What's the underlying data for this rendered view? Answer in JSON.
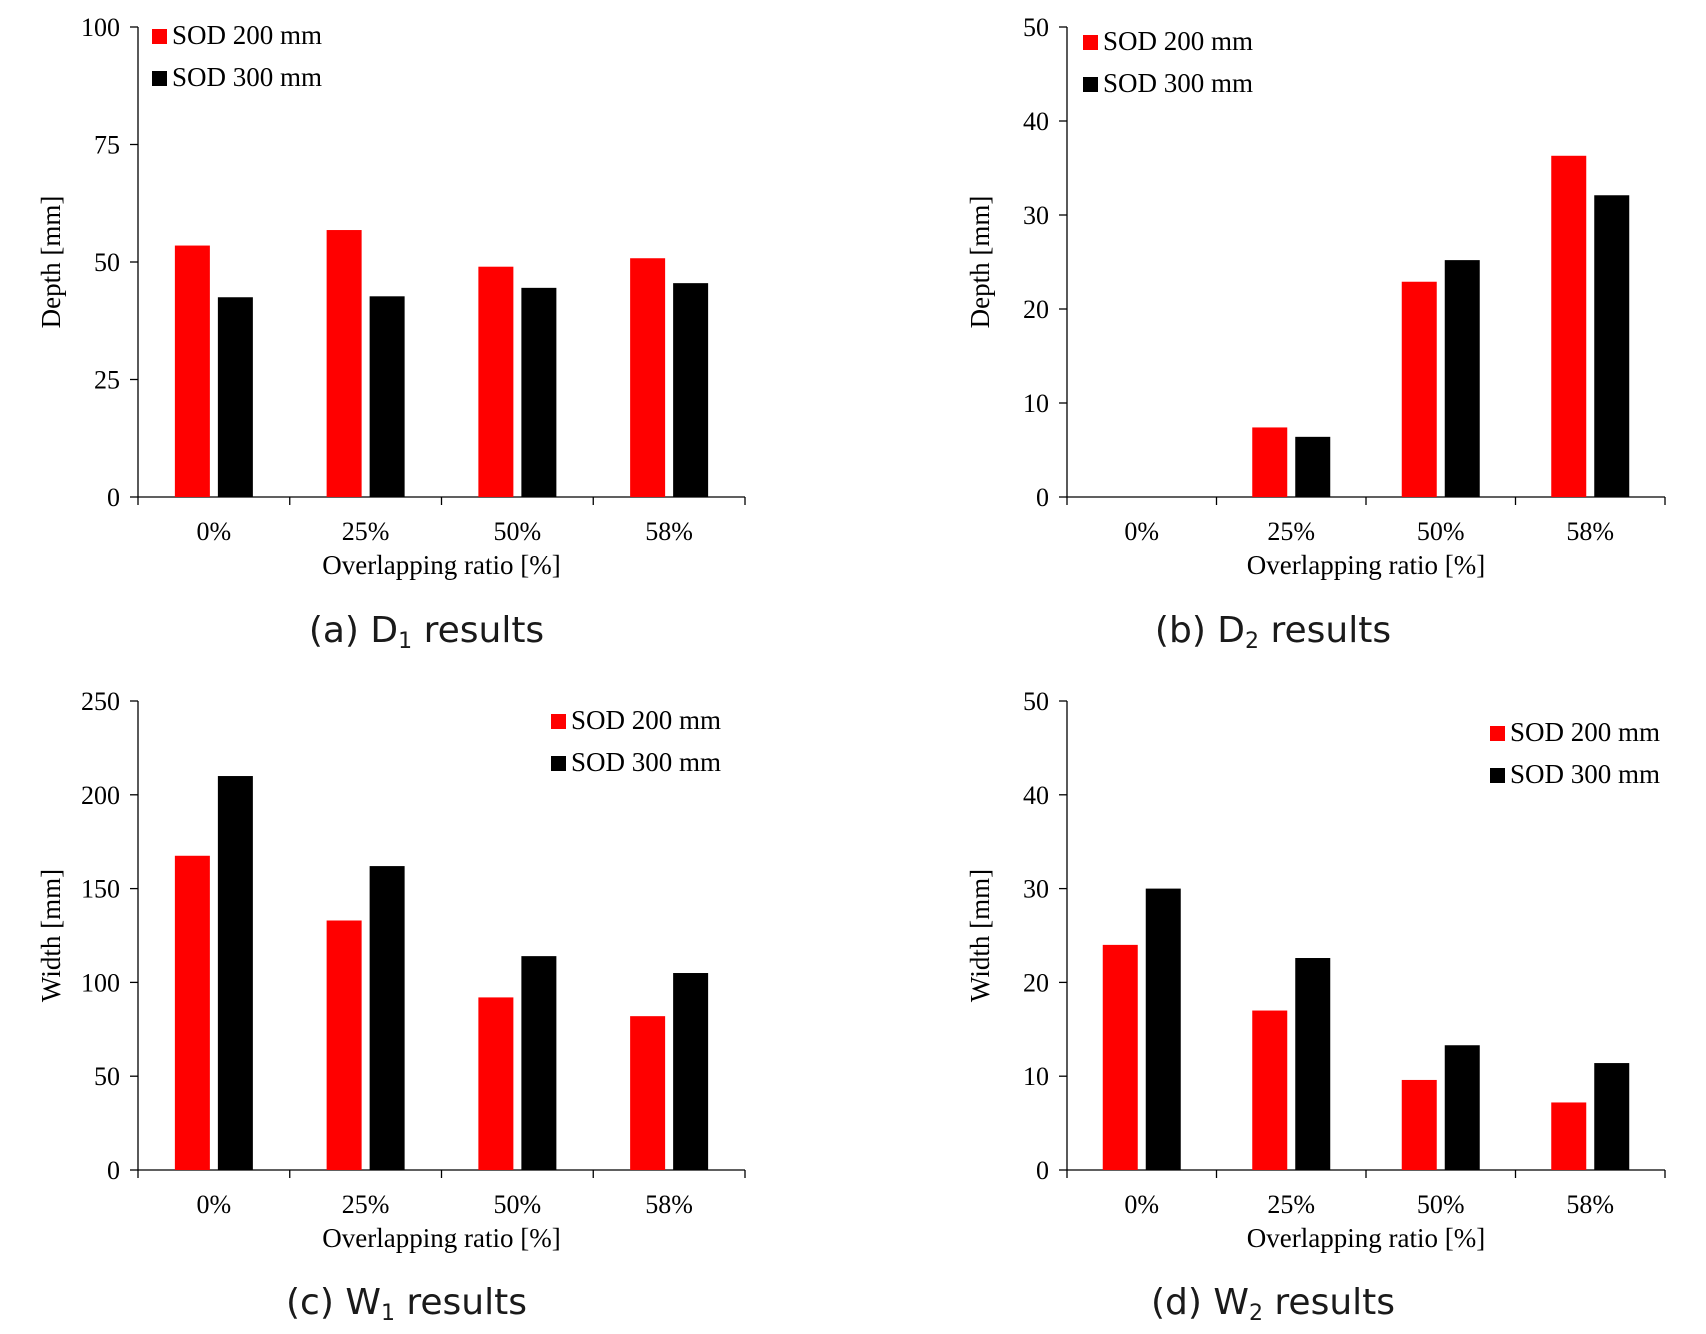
{
  "chart_data": [
    {
      "type": "bar",
      "categories": [
        "0%",
        "25%",
        "50%",
        "58%"
      ],
      "series": [
        {
          "name": "SOD 200 mm",
          "color": "#ff0000",
          "values": [
            53.5,
            56.8,
            49,
            50.8
          ]
        },
        {
          "name": "SOD 300 mm",
          "color": "#000000",
          "values": [
            42.5,
            42.7,
            44.5,
            45.5
          ]
        }
      ],
      "xlabel": "Overlapping ratio [%]",
      "ylabel": "Depth [mm]",
      "ylim": [
        0,
        100
      ],
      "yticks": [
        0,
        25,
        50,
        75,
        100
      ],
      "legend": "top-left",
      "caption": {
        "prefix": "(a) D",
        "sub": "1",
        "suffix": " results"
      }
    },
    {
      "type": "bar",
      "categories": [
        "0%",
        "25%",
        "50%",
        "58%"
      ],
      "series": [
        {
          "name": "SOD 200 mm",
          "color": "#ff0000",
          "values": [
            0,
            7.4,
            22.9,
            36.3
          ]
        },
        {
          "name": "SOD 300 mm",
          "color": "#000000",
          "values": [
            0,
            6.4,
            25.2,
            32.1
          ]
        }
      ],
      "xlabel": "Overlapping ratio [%]",
      "ylabel": "Depth [mm]",
      "ylim": [
        0,
        50
      ],
      "yticks": [
        0,
        10,
        20,
        30,
        40,
        50
      ],
      "legend": "top-left",
      "caption": {
        "prefix": "(b) D",
        "sub": "2",
        "suffix": " results"
      }
    },
    {
      "type": "bar",
      "categories": [
        "0%",
        "25%",
        "50%",
        "58%"
      ],
      "series": [
        {
          "name": "SOD 200 mm",
          "color": "#ff0000",
          "values": [
            167.5,
            133,
            92,
            82
          ]
        },
        {
          "name": "SOD 300 mm",
          "color": "#000000",
          "values": [
            210,
            162,
            114,
            105
          ]
        }
      ],
      "xlabel": "Overlapping ratio [%]",
      "ylabel": "Width [mm]",
      "ylim": [
        0,
        250
      ],
      "yticks": [
        0,
        50,
        100,
        150,
        200,
        250
      ],
      "legend": "top-right",
      "caption": {
        "prefix": "(c) W",
        "sub": "1",
        "suffix": " results"
      }
    },
    {
      "type": "bar",
      "categories": [
        "0%",
        "25%",
        "50%",
        "58%"
      ],
      "series": [
        {
          "name": "SOD 200 mm",
          "color": "#ff0000",
          "values": [
            24,
            17,
            9.6,
            7.2
          ]
        },
        {
          "name": "SOD 300 mm",
          "color": "#000000",
          "values": [
            30,
            22.6,
            13.3,
            11.4
          ]
        }
      ],
      "xlabel": "Overlapping ratio [%]",
      "ylabel": "Width [mm]",
      "ylim": [
        0,
        50
      ],
      "yticks": [
        0,
        10,
        20,
        30,
        40,
        50
      ],
      "legend": "top-right",
      "caption": {
        "prefix": "(d) W",
        "sub": "2",
        "suffix": " results"
      }
    }
  ]
}
